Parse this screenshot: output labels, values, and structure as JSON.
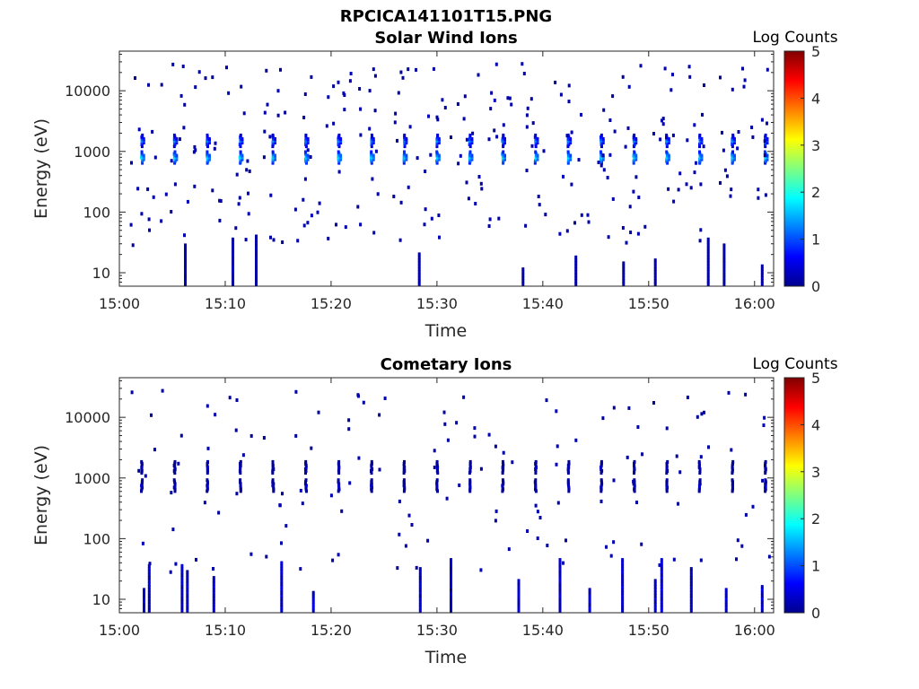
{
  "figure_title": "RPCICA141101T15.PNG",
  "chart_data": [
    {
      "type": "heatmap",
      "title": "Solar Wind Ions",
      "xlabel": "Time",
      "ylabel": "Energy (eV)",
      "x_ticks": [
        "15:00",
        "15:10",
        "15:20",
        "15:30",
        "15:40",
        "15:50",
        "16:00"
      ],
      "x_tick_minutes": [
        0,
        10,
        20,
        30,
        40,
        50,
        60
      ],
      "xlim_minutes": [
        0,
        61.8
      ],
      "y_scale": "log",
      "y_ticks": [
        "10",
        "100",
        "1000",
        "10000"
      ],
      "y_tick_values": [
        10,
        100,
        1000,
        10000
      ],
      "ylim": [
        6,
        45000
      ],
      "colorbar_label": "Log Counts",
      "colorbar_ticks": [
        "0",
        "1",
        "2",
        "3",
        "4",
        "5"
      ],
      "colorbar_range": [
        0,
        5
      ],
      "colormap": "jet",
      "scan_period_min": 3.1,
      "scan_start_min": 2.0,
      "scan_count": 20,
      "peak_energies_ev": [
        850,
        1600
      ],
      "peak_log_counts": [
        1.8,
        1.4
      ],
      "low_energy_columns_min": [
        6.1,
        10.6,
        12.8,
        28.2,
        38.0,
        43.0,
        47.5,
        50.5,
        55.5,
        57.0,
        60.6
      ],
      "scatter_density": 0.35
    },
    {
      "type": "heatmap",
      "title": "Cometary Ions",
      "xlabel": "Time",
      "ylabel": "Energy (eV)",
      "x_ticks": [
        "15:00",
        "15:10",
        "15:20",
        "15:30",
        "15:40",
        "15:50",
        "16:00"
      ],
      "x_tick_minutes": [
        0,
        10,
        20,
        30,
        40,
        50,
        60
      ],
      "xlim_minutes": [
        0,
        61.8
      ],
      "y_scale": "log",
      "y_ticks": [
        "10",
        "100",
        "1000",
        "10000"
      ],
      "y_tick_values": [
        10,
        100,
        1000,
        10000
      ],
      "ylim": [
        6,
        45000
      ],
      "colorbar_label": "Log Counts",
      "colorbar_ticks": [
        "0",
        "1",
        "2",
        "3",
        "4",
        "5"
      ],
      "colorbar_range": [
        0,
        5
      ],
      "colormap": "jet",
      "scan_period_min": 3.1,
      "scan_start_min": 2.0,
      "scan_count": 20,
      "peak_energies_ev": [
        800,
        1600
      ],
      "peak_log_counts": [
        0.5,
        0.4
      ],
      "low_energy_columns_min": [
        2.2,
        2.7,
        5.8,
        6.3,
        8.8,
        15.2,
        18.2,
        28.3,
        31.2,
        37.6,
        41.5,
        44.3,
        47.4,
        50.5,
        51.1,
        53.9,
        57.2,
        60.6
      ],
      "scatter_density": 0.18
    }
  ]
}
